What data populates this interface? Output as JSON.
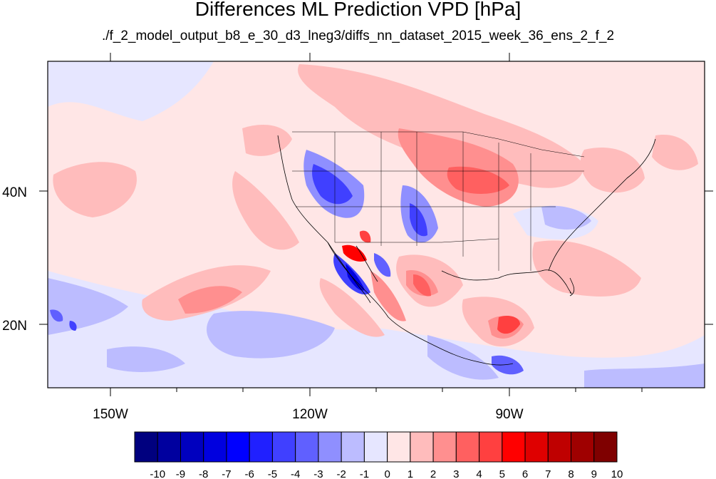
{
  "title": "Differences ML Prediction VPD [hPa]",
  "subtitle": "./f_2_model_output_b8_e_30_d3_lneg3/diffs_nn_dataset_2015_week_36_ens_2_f_2",
  "axes": {
    "lat_labels": [
      "40N",
      "20N"
    ],
    "lon_labels": [
      "150W",
      "120W",
      "90W"
    ]
  },
  "colorbar": {
    "tick_labels": [
      "-10",
      "-9",
      "-8",
      "-7",
      "-6",
      "-5",
      "-4",
      "-3",
      "-2",
      "-1",
      "0",
      "1",
      "2",
      "3",
      "4",
      "5",
      "6",
      "7",
      "8",
      "9",
      "10"
    ],
    "colors": [
      "#00007f",
      "#00009f",
      "#0000bf",
      "#0000df",
      "#0000ff",
      "#2020ff",
      "#4040ff",
      "#6060ff",
      "#8f8fff",
      "#bcbcff",
      "#e6e6ff",
      "#ffe6e6",
      "#ffbcbc",
      "#ff8f8f",
      "#ff6060",
      "#ff4040",
      "#ff0000",
      "#df0000",
      "#bf0000",
      "#9f0000",
      "#7f0000"
    ]
  },
  "icons": [
    "coastline-overlay",
    "state-boundaries-overlay"
  ]
}
